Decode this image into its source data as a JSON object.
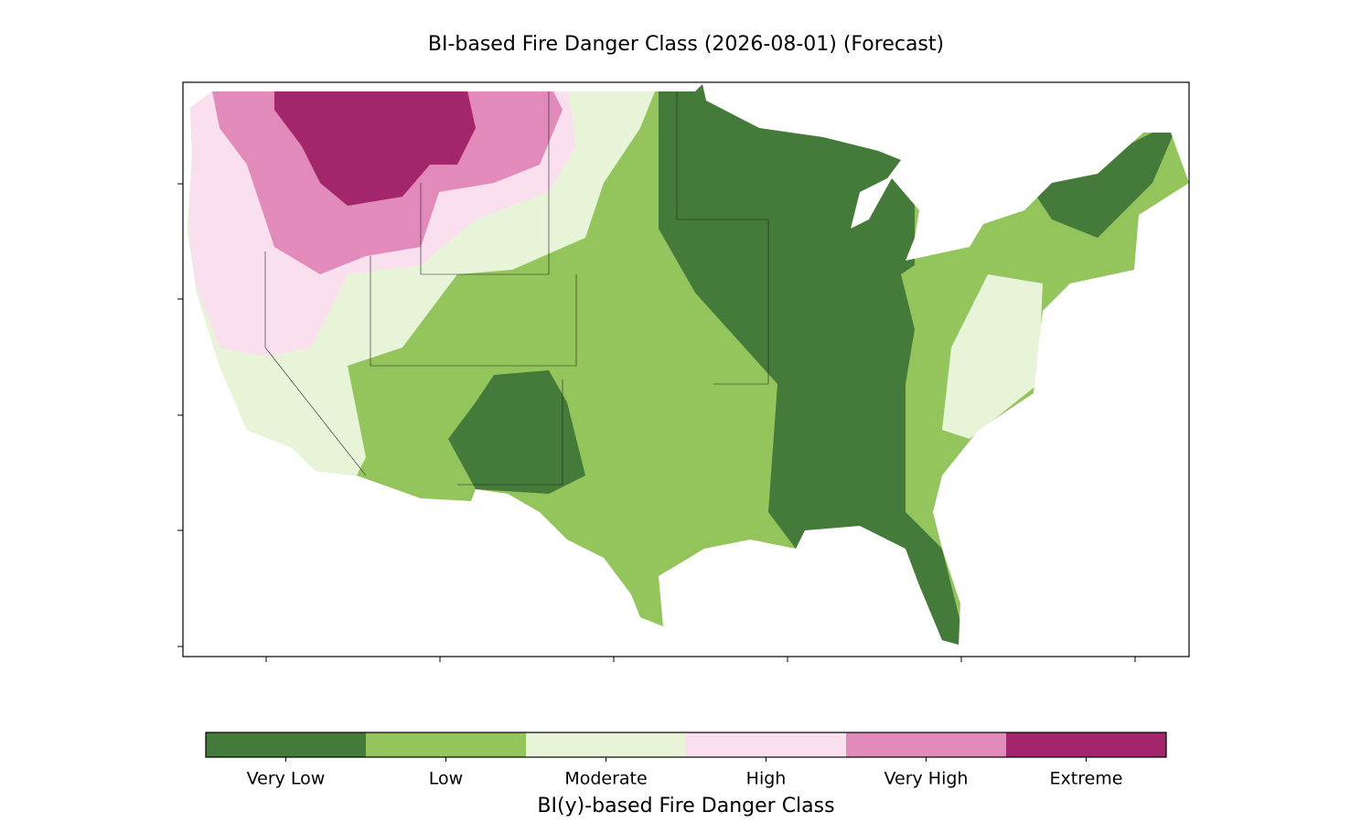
{
  "title": "BI-based Fire Danger Class (2026-08-01) (Forecast)",
  "colorbar": {
    "label": "BI(y)-based Fire Danger Class",
    "classes": [
      {
        "name": "Very Low",
        "color": "#447a3a"
      },
      {
        "name": "Low",
        "color": "#94c45c"
      },
      {
        "name": "Moderate",
        "color": "#e8f4d8"
      },
      {
        "name": "High",
        "color": "#fae0ee"
      },
      {
        "name": "Very High",
        "color": "#e28ab9"
      },
      {
        "name": "Extreme",
        "color": "#a3256b"
      }
    ]
  }
}
